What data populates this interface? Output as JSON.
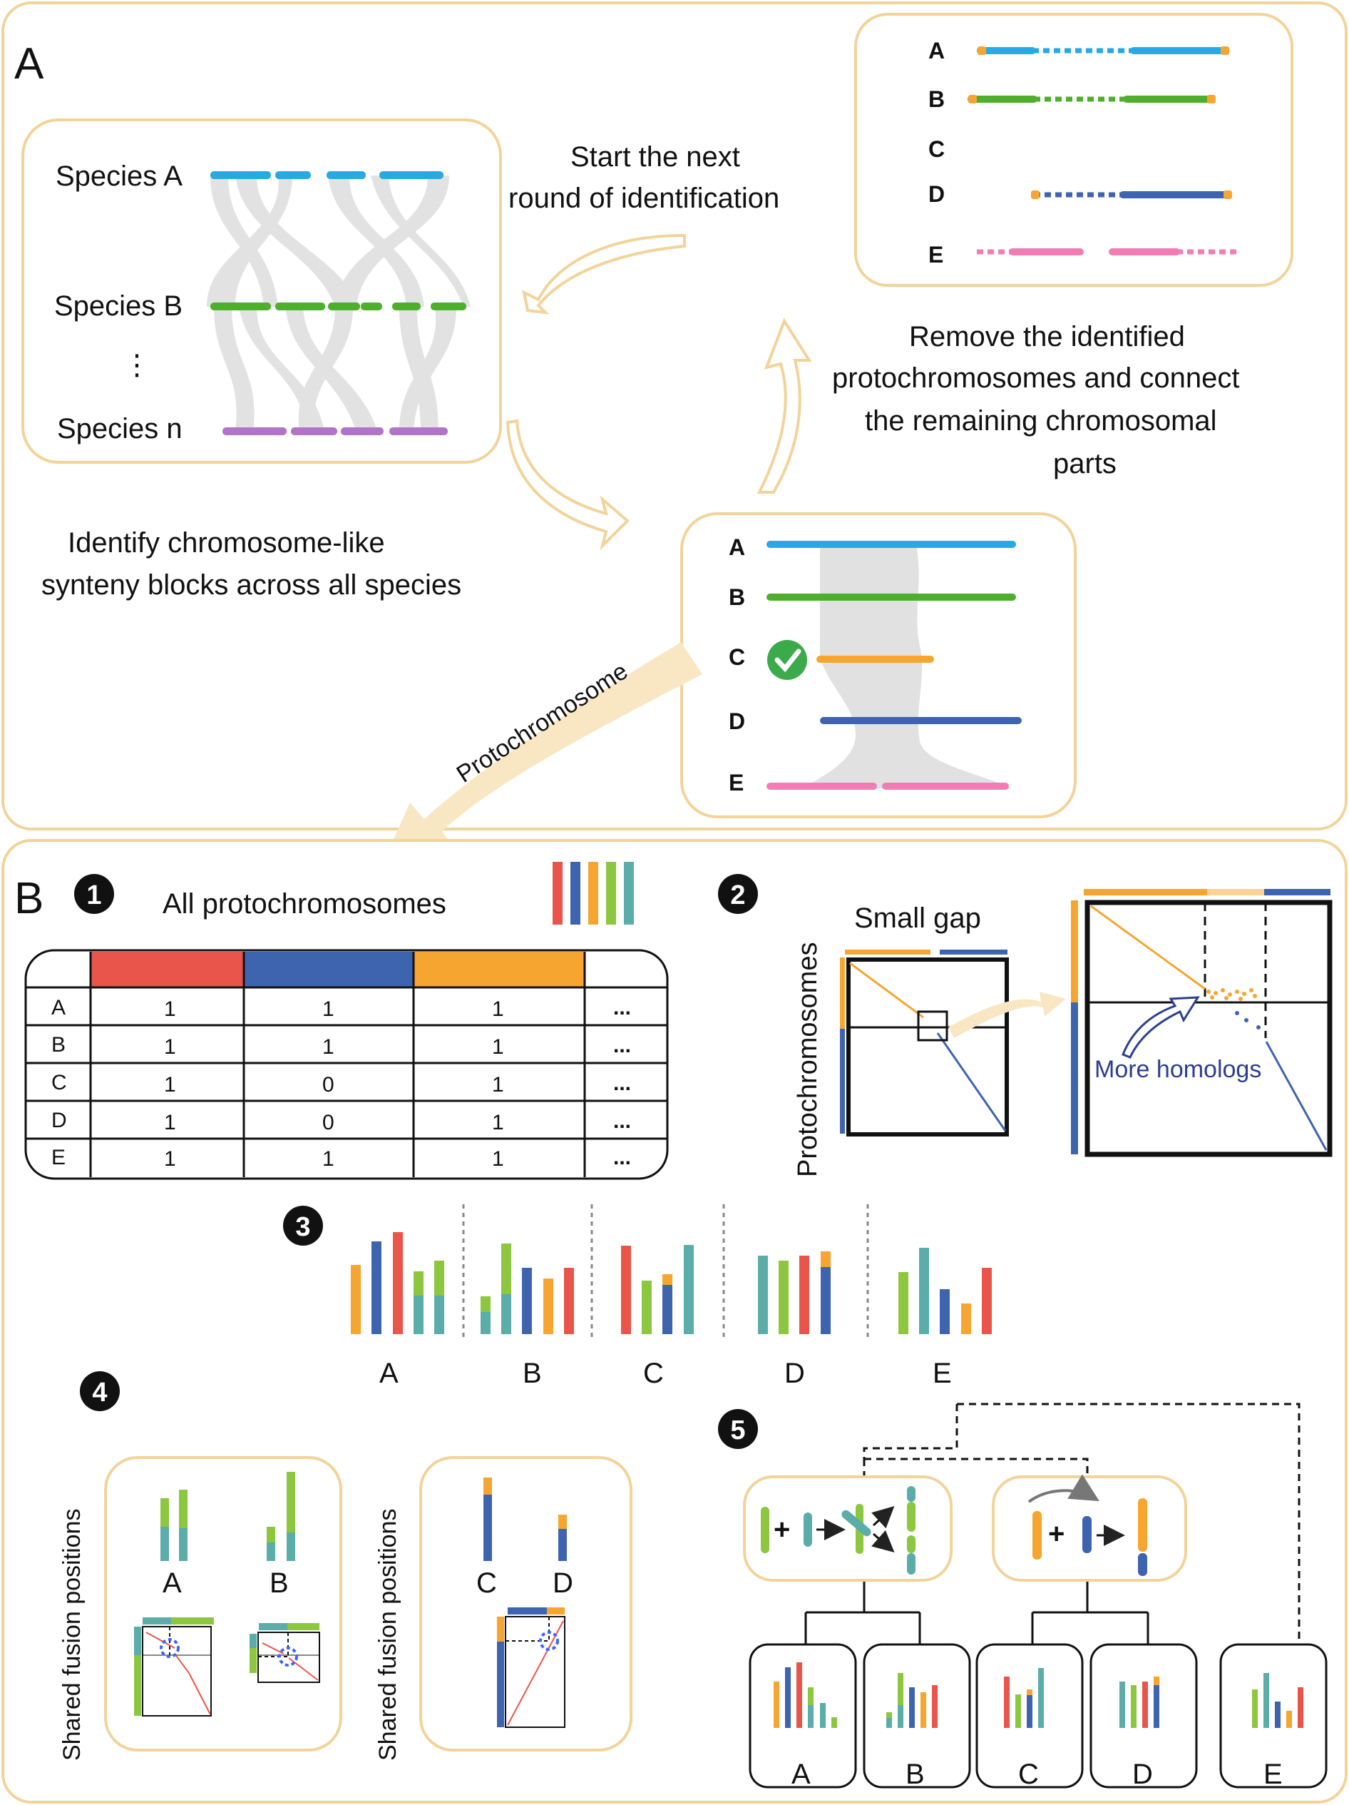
{
  "colors": {
    "frame": "#F2D399",
    "frame_fill": "#FFFFFF",
    "orange": "#F7A531",
    "red": "#E9554A",
    "blue": "#3E64B0",
    "green": "#8DC63F",
    "teal": "#5AADA9",
    "cyan": "#27A9E1",
    "dgreen": "#4DAF2C",
    "pink": "#F27DB5",
    "purple": "#B174C9",
    "check": "#3BAA4A",
    "grey_band": "#D9D9D9",
    "arrow_fill": "#F9E7C4"
  },
  "panel_a": {
    "label": "A",
    "species_labels": [
      "Species A",
      "Species B",
      "⋮",
      "Species n"
    ],
    "text_next_round": [
      "Start the next",
      "round of identification"
    ],
    "text_remove": [
      "Remove the identified",
      "protochromosomes and connect",
      "the remaining chromosomal",
      "parts"
    ],
    "text_identify": [
      "Identify chromosome-like",
      "synteny blocks across all species"
    ],
    "arrow_label": "Protochromosome",
    "top_right_rows": [
      "A",
      "B",
      "C",
      "D",
      "E"
    ],
    "bottom_rows": [
      "A",
      "B",
      "C",
      "D",
      "E"
    ]
  },
  "panel_b": {
    "label": "B",
    "step1_title": "All protochromosomes",
    "step_numbers": [
      "1",
      "2",
      "3",
      "4",
      "5"
    ],
    "table": {
      "rows": [
        "A",
        "B",
        "C",
        "D",
        "E"
      ],
      "header_colors": [
        "#E9554A",
        "#3E64B0",
        "#F7A531"
      ],
      "values": [
        [
          "1",
          "1",
          "1",
          "..."
        ],
        [
          "1",
          "1",
          "1",
          "..."
        ],
        [
          "1",
          "0",
          "1",
          "..."
        ],
        [
          "1",
          "0",
          "1",
          "..."
        ],
        [
          "1",
          "1",
          "1",
          "..."
        ]
      ]
    },
    "step2_axis_label": "Protochromosomes",
    "step2_small_gap": "Small gap",
    "step2_homologs": "More homologs",
    "step3_groups": [
      "A",
      "B",
      "C",
      "D",
      "E"
    ],
    "step4_axis_label": "Shared fusion positions",
    "step4_labels": [
      "A",
      "B",
      "C",
      "D"
    ],
    "step5_leaf_labels": [
      "A",
      "B",
      "C",
      "D",
      "E"
    ]
  }
}
